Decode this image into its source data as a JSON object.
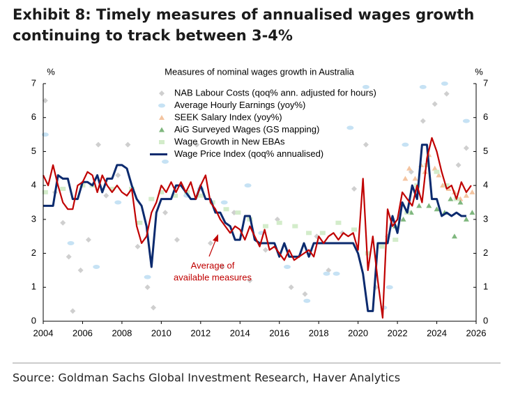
{
  "title_lines": [
    "Exhibit 8: Timely measures of annualised wages growth",
    "continuing to track between 3-4%"
  ],
  "source": "Source: Goldman Sachs Global Investment Research, Haver Analytics",
  "chart_data": {
    "type": "combo",
    "title": "Measures of nominal wages growth in Australia",
    "ylabel": "%",
    "y2label": "%",
    "xlim": [
      2004,
      2026
    ],
    "xticks": [
      2004,
      2006,
      2008,
      2010,
      2012,
      2014,
      2016,
      2018,
      2020,
      2022,
      2024,
      2026
    ],
    "ylim": [
      0,
      7
    ],
    "yticks": [
      0,
      1,
      2,
      3,
      4,
      5,
      6,
      7
    ],
    "y2lim": [
      0,
      7
    ],
    "y2ticks": [
      0,
      1,
      2,
      3,
      4,
      5,
      6,
      7
    ],
    "grid": false,
    "annotation": [
      "Average of",
      "available measures"
    ],
    "annotation_color": "#c00000",
    "series": [
      {
        "name": "NAB Labour Costs (qoq% ann. adjusted for hours)",
        "type": "scatter",
        "marker": "diamond",
        "color": "#cfcfcf",
        "x": [
          2004.1,
          2004.6,
          2005.0,
          2005.3,
          2005.5,
          2005.9,
          2006.3,
          2006.8,
          2007.2,
          2007.8,
          2008.3,
          2008.8,
          2009.3,
          2009.6,
          2010.2,
          2010.8,
          2011.3,
          2011.8,
          2012.5,
          2013.1,
          2013.7,
          2014.5,
          2015.3,
          2015.9,
          2016.6,
          2017.3,
          2017.9,
          2018.5,
          2019.2,
          2019.8,
          2020.4,
          2020.9,
          2021.5,
          2022.1,
          2022.7,
          2023.3,
          2023.9,
          2024.5,
          2025.1,
          2025.5
        ],
        "values": [
          6.5,
          3.8,
          2.9,
          1.9,
          0.3,
          1.5,
          2.4,
          5.2,
          3.7,
          4.3,
          5.2,
          2.2,
          1.0,
          0.4,
          3.2,
          2.4,
          3.8,
          5.2,
          2.3,
          1.6,
          3.2,
          1.2,
          2.1,
          3.0,
          1.0,
          0.8,
          2.5,
          1.5,
          2.6,
          3.9,
          5.2,
          1.0,
          2.5,
          3.0,
          4.4,
          5.9,
          6.4,
          6.7,
          4.6,
          5.1
        ]
      },
      {
        "name": "Average Hourly Earnings (yoy%)",
        "type": "scatter",
        "marker": "ellipse",
        "color": "#c6e2f4",
        "x": [
          2004.1,
          2005.4,
          2006.7,
          2007.8,
          2009.3,
          2010.2,
          2011.3,
          2012.0,
          2013.2,
          2014.4,
          2015.1,
          2016.4,
          2017.4,
          2018.4,
          2018.9,
          2019.6,
          2020.4,
          2021.3,
          2021.6,
          2022.4,
          2023.3,
          2024.4,
          2025.5
        ],
        "values": [
          5.5,
          2.3,
          1.6,
          3.5,
          1.3,
          4.7,
          3.7,
          3.9,
          3.5,
          4.0,
          2.6,
          1.6,
          0.6,
          1.4,
          1.4,
          5.7,
          6.9,
          0.4,
          1.0,
          5.2,
          6.9,
          7.0,
          5.9
        ]
      },
      {
        "name": "SEEK Salary Index (yoy%)",
        "type": "scatter",
        "marker": "triangle",
        "color": "#f4c4a0",
        "x": [
          2022.4,
          2022.6,
          2022.9,
          2023.2,
          2023.4,
          2023.6,
          2023.9,
          2024.1,
          2024.3,
          2024.6,
          2024.9,
          2025.2,
          2025.5,
          2025.8
        ],
        "values": [
          4.2,
          4.5,
          4.2,
          4.6,
          4.4,
          4.9,
          4.5,
          4.3,
          4.0,
          3.9,
          3.8,
          3.6,
          3.7,
          3.8
        ]
      },
      {
        "name": "AiG Surveyed Wages (GS mapping)",
        "type": "scatter",
        "marker": "triangle",
        "color": "#7fb77e",
        "x": [
          2021.9,
          2022.3,
          2022.7,
          2023.1,
          2023.6,
          2024.0,
          2024.4,
          2024.7,
          2024.9,
          2025.2,
          2025.5,
          2025.8
        ],
        "values": [
          2.8,
          3.0,
          3.2,
          3.4,
          3.4,
          3.3,
          3.2,
          3.6,
          2.5,
          3.5,
          3.0,
          3.2
        ]
      },
      {
        "name": "Wage Growth in New EBAs",
        "type": "scatter",
        "marker": "square",
        "color": "#d3ecca",
        "x": [
          2004.1,
          2005.0,
          2006.0,
          2006.5,
          2007.5,
          2008.5,
          2008.9,
          2009.5,
          2010.0,
          2010.7,
          2011.3,
          2012.0,
          2012.6,
          2013.3,
          2013.9,
          2014.5,
          2015.3,
          2016.0,
          2016.8,
          2017.5,
          2018.2,
          2019.0,
          2019.8,
          2020.5,
          2021.2,
          2021.9,
          2022.5,
          2023.0,
          2023.5,
          2024.0,
          2024.5,
          2025.0
        ],
        "values": [
          3.8,
          3.9,
          4.0,
          4.0,
          3.9,
          3.9,
          2.9,
          3.6,
          3.8,
          3.7,
          3.8,
          3.7,
          3.5,
          3.3,
          3.2,
          3.0,
          2.8,
          2.9,
          2.8,
          2.6,
          2.6,
          2.9,
          2.7,
          2.0,
          2.2,
          2.4,
          3.2,
          4.0,
          4.6,
          4.4,
          4.0,
          3.6
        ]
      },
      {
        "name": "Wage Price Index (qoq% annualised)",
        "type": "line",
        "color": "#0b2a6e",
        "width": 3,
        "x": [
          2004,
          2004.25,
          2004.5,
          2004.75,
          2005,
          2005.25,
          2005.5,
          2005.75,
          2006,
          2006.25,
          2006.5,
          2006.75,
          2007,
          2007.25,
          2007.5,
          2007.75,
          2008,
          2008.25,
          2008.5,
          2008.75,
          2009,
          2009.25,
          2009.5,
          2009.75,
          2010,
          2010.25,
          2010.5,
          2010.75,
          2011,
          2011.25,
          2011.5,
          2011.75,
          2012,
          2012.25,
          2012.5,
          2012.75,
          2013,
          2013.25,
          2013.5,
          2013.75,
          2014,
          2014.25,
          2014.5,
          2014.75,
          2015,
          2015.25,
          2015.5,
          2015.75,
          2016,
          2016.25,
          2016.5,
          2016.75,
          2017,
          2017.25,
          2017.5,
          2017.75,
          2018,
          2018.25,
          2018.5,
          2018.75,
          2019,
          2019.25,
          2019.5,
          2019.75,
          2020,
          2020.25,
          2020.5,
          2020.75,
          2021,
          2021.25,
          2021.5,
          2021.75,
          2022,
          2022.25,
          2022.5,
          2022.75,
          2023,
          2023.25,
          2023.5,
          2023.75,
          2024,
          2024.25,
          2024.5,
          2024.75,
          2025,
          2025.25,
          2025.5
        ],
        "values": [
          3.4,
          3.4,
          3.4,
          4.3,
          4.2,
          4.2,
          3.6,
          3.6,
          4.1,
          4.1,
          4.0,
          4.3,
          3.8,
          4.2,
          4.2,
          4.6,
          4.6,
          4.5,
          4.0,
          3.6,
          3.4,
          2.8,
          1.6,
          3.2,
          3.6,
          3.6,
          3.6,
          4.0,
          4.0,
          3.8,
          3.6,
          3.6,
          4.0,
          3.6,
          3.6,
          3.2,
          3.2,
          2.9,
          2.8,
          2.4,
          2.4,
          3.1,
          3.1,
          2.4,
          2.3,
          2.3,
          2.3,
          2.3,
          1.9,
          2.3,
          1.9,
          1.9,
          1.9,
          2.3,
          1.9,
          2.3,
          2.3,
          2.3,
          2.3,
          2.3,
          2.3,
          2.3,
          2.3,
          2.3,
          2.0,
          1.4,
          0.3,
          0.3,
          2.3,
          2.3,
          2.3,
          3.1,
          2.6,
          3.5,
          3.2,
          4.0,
          3.6,
          5.2,
          5.2,
          3.6,
          3.6,
          3.1,
          3.2,
          3.1,
          3.2,
          3.1,
          3.1
        ]
      },
      {
        "type": "line",
        "color": "#c00000",
        "width": 2.2,
        "x": [
          2004,
          2004.25,
          2004.5,
          2004.75,
          2005,
          2005.25,
          2005.5,
          2005.75,
          2006,
          2006.25,
          2006.5,
          2006.75,
          2007,
          2007.25,
          2007.5,
          2007.75,
          2008,
          2008.25,
          2008.5,
          2008.75,
          2009,
          2009.25,
          2009.5,
          2009.75,
          2010,
          2010.25,
          2010.5,
          2010.75,
          2011,
          2011.25,
          2011.5,
          2011.75,
          2012,
          2012.25,
          2012.5,
          2012.75,
          2013,
          2013.25,
          2013.5,
          2013.75,
          2014,
          2014.25,
          2014.5,
          2014.75,
          2015,
          2015.25,
          2015.5,
          2015.75,
          2016,
          2016.25,
          2016.5,
          2016.75,
          2017,
          2017.25,
          2017.5,
          2017.75,
          2018,
          2018.25,
          2018.5,
          2018.75,
          2019,
          2019.25,
          2019.5,
          2019.75,
          2020,
          2020.25,
          2020.5,
          2020.75,
          2021,
          2021.25,
          2021.5,
          2021.75,
          2022,
          2022.25,
          2022.5,
          2022.75,
          2023,
          2023.25,
          2023.5,
          2023.75,
          2024,
          2024.25,
          2024.5,
          2024.75,
          2025,
          2025.25,
          2025.5,
          2025.75
        ],
        "values": [
          4.3,
          4.0,
          4.6,
          4.0,
          3.5,
          3.3,
          3.3,
          4.0,
          4.1,
          4.4,
          4.3,
          3.8,
          4.3,
          4.0,
          3.8,
          4.0,
          3.8,
          3.7,
          3.9,
          2.8,
          2.3,
          2.5,
          3.2,
          3.5,
          4.0,
          3.8,
          4.1,
          3.8,
          4.1,
          3.8,
          4.1,
          3.6,
          4.0,
          4.3,
          3.5,
          3.3,
          3.0,
          2.8,
          2.6,
          2.8,
          2.7,
          2.4,
          2.8,
          2.5,
          2.2,
          2.7,
          2.1,
          2.2,
          2.0,
          1.8,
          2.1,
          1.8,
          1.9,
          2.0,
          2.1,
          1.9,
          2.5,
          2.3,
          2.5,
          2.6,
          2.4,
          2.6,
          2.5,
          2.6,
          2.1,
          4.2,
          1.5,
          2.5,
          1.2,
          0.1,
          3.3,
          2.8,
          3.0,
          3.8,
          3.6,
          3.4,
          4.0,
          3.5,
          4.8,
          5.4,
          5.0,
          4.4,
          3.9,
          4.0,
          3.6,
          4.1,
          3.8,
          4.0
        ]
      }
    ]
  }
}
